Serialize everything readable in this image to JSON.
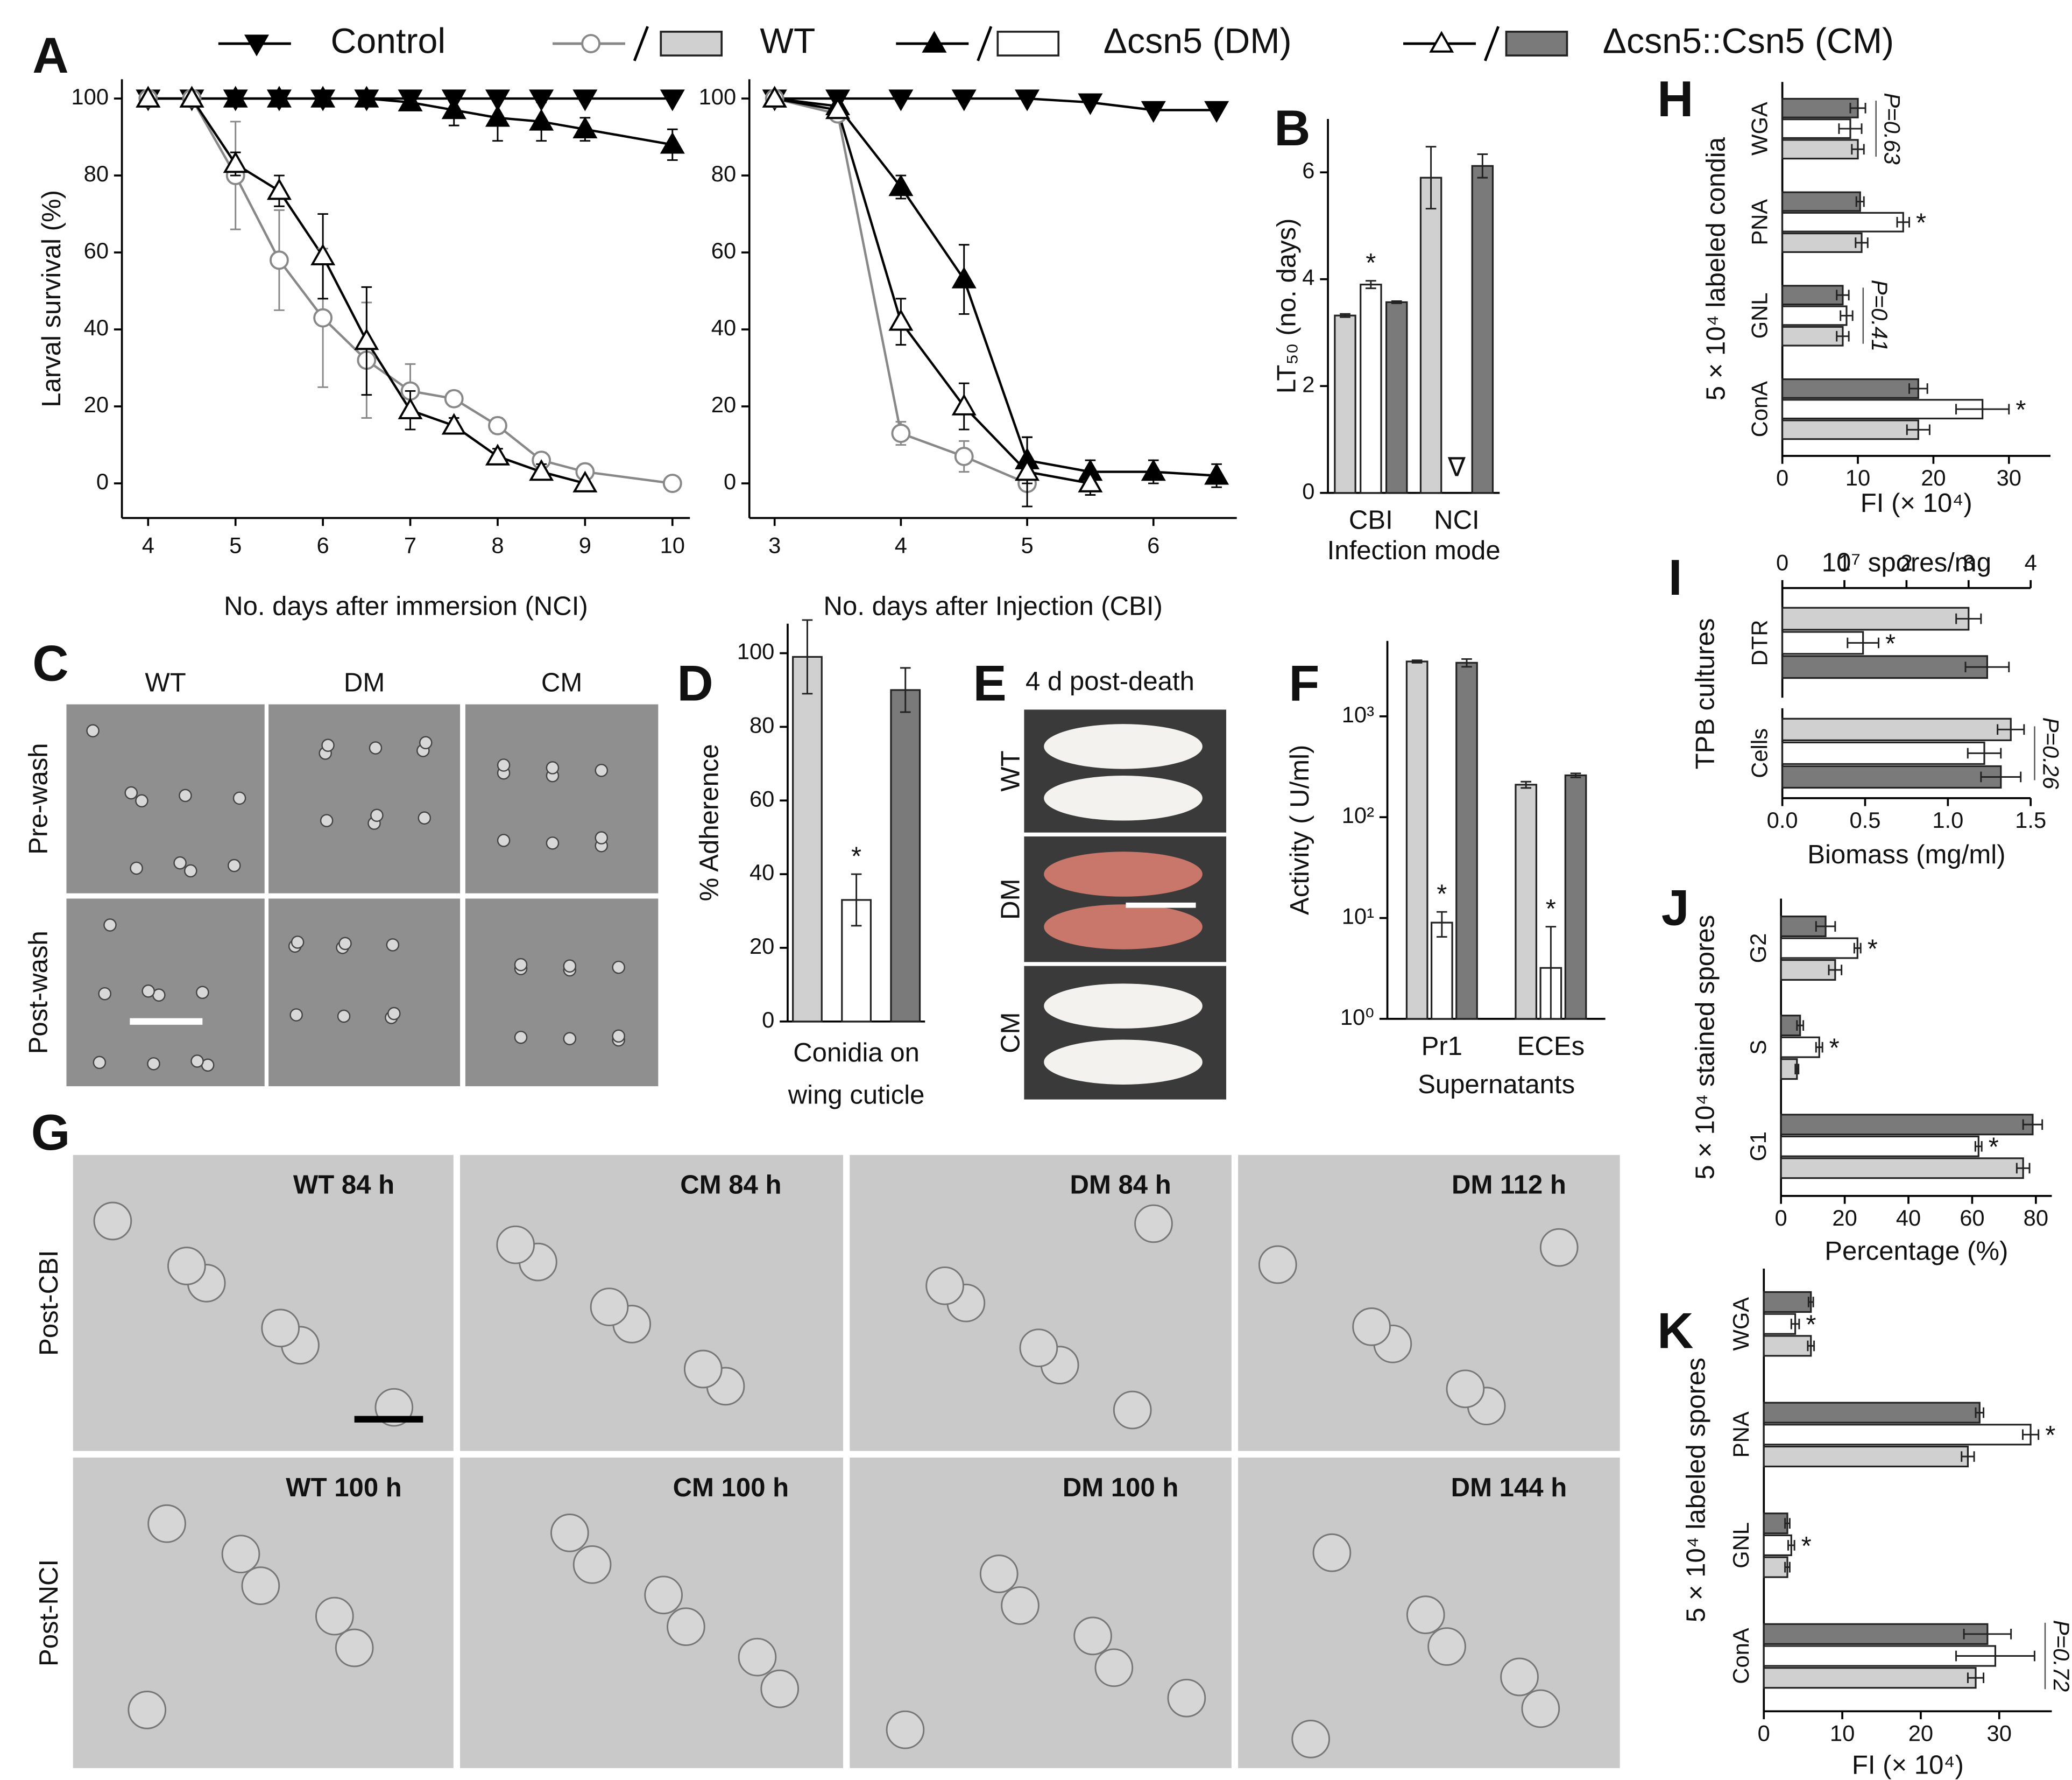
{
  "panel_letters": [
    "A",
    "B",
    "C",
    "D",
    "E",
    "F",
    "G",
    "H",
    "I",
    "J",
    "K"
  ],
  "legend": [
    {
      "label": "Control",
      "color": "#000000",
      "marker": "triangle-down",
      "filled": true
    },
    {
      "label": "WT",
      "color": "#888888",
      "marker": "circle",
      "filled": false,
      "bar_color": "#d0d0d0"
    },
    {
      "label": "Δcsn5 (DM)",
      "color": "#000000",
      "marker": "triangle-up",
      "filled": true,
      "bar_color": "#ffffff"
    },
    {
      "label": "Δcsn5::Csn5 (CM)",
      "color": "#000000",
      "marker": "triangle-up",
      "filled": false,
      "bar_color": "#7a7a7a"
    }
  ],
  "photo_panels": {
    "C": {
      "columns": [
        "WT",
        "DM",
        "CM"
      ],
      "rows": [
        "Pre-wash",
        "Post-wash"
      ]
    },
    "E": {
      "title": "4 d post-death",
      "rows": [
        "WT",
        "DM",
        "CM"
      ]
    },
    "G": {
      "rows": [
        "Post-CBI",
        "Post-NCI"
      ],
      "labels": [
        [
          "WT  84 h",
          "CM  84 h",
          "DM  84 h",
          "DM  112 h"
        ],
        [
          "WT  100 h",
          "CM  100 h",
          "DM  100 h",
          "DM  144 h"
        ]
      ]
    }
  },
  "chart_data": [
    {
      "type": "line",
      "ylabel": "Larval survival (%)",
      "xlabel": "No. days after immersion (NCI)",
      "xlim": [
        3.7,
        10.2
      ],
      "xticks": [
        4,
        5,
        6,
        7,
        8,
        9,
        10
      ],
      "ylim": [
        -9,
        105
      ],
      "yticks": [
        0,
        20,
        40,
        60,
        80,
        100
      ],
      "series": [
        {
          "color": "#000000",
          "marker": "triangle-down",
          "filled": true,
          "x": [
            4,
            4.5,
            5,
            5.5,
            6,
            6.5,
            7,
            7.5,
            8,
            8.5,
            9,
            10
          ],
          "values": [
            100,
            100,
            100,
            100,
            100,
            100,
            100,
            100,
            100,
            100,
            100,
            100
          ]
        },
        {
          "color": "#888888",
          "marker": "circle",
          "filled": false,
          "x": [
            4,
            4.5,
            5,
            5.5,
            6,
            6.5,
            7,
            7.5,
            8,
            8.5,
            9,
            10
          ],
          "values": [
            100,
            100,
            80,
            58,
            43,
            32,
            24,
            22,
            15,
            6,
            3,
            0
          ],
          "errors": [
            0,
            0,
            14,
            13,
            18,
            15,
            7,
            2,
            2,
            2,
            2,
            0
          ]
        },
        {
          "color": "#000000",
          "marker": "triangle-up",
          "filled": true,
          "x": [
            4,
            4.5,
            5,
            5.5,
            6,
            6.5,
            7,
            7.5,
            8,
            8.5,
            9,
            10
          ],
          "values": [
            100,
            100,
            100,
            100,
            100,
            100,
            99,
            97,
            95,
            94,
            92,
            88
          ],
          "errors": [
            0,
            0,
            0,
            0,
            0,
            0,
            1,
            4,
            6,
            5,
            3,
            4
          ]
        },
        {
          "color": "#000000",
          "marker": "triangle-up",
          "filled": false,
          "x": [
            4,
            4.5,
            5,
            5.5,
            6,
            6.5,
            7,
            7.5,
            8,
            8.5,
            9
          ],
          "values": [
            100,
            100,
            83,
            76,
            59,
            37,
            19,
            15,
            7,
            3,
            0
          ],
          "errors": [
            0,
            0,
            3,
            4,
            11,
            14,
            5,
            2,
            2,
            2,
            0
          ]
        }
      ]
    },
    {
      "type": "line",
      "xlabel": "No. days after Injection (CBI)",
      "xlim": [
        2.8,
        6.66
      ],
      "xticks": [
        3,
        4,
        5,
        6
      ],
      "ylim": [
        -9,
        105
      ],
      "yticks": [
        0,
        20,
        40,
        60,
        80,
        100
      ],
      "series": [
        {
          "color": "#000000",
          "marker": "triangle-down",
          "filled": true,
          "x": [
            3,
            3.5,
            4,
            4.5,
            5,
            5.5,
            6,
            6.5
          ],
          "values": [
            100,
            100,
            100,
            100,
            100,
            99,
            97,
            97
          ]
        },
        {
          "color": "#888888",
          "marker": "circle",
          "filled": false,
          "x": [
            3,
            3.5,
            4,
            4.5,
            5
          ],
          "values": [
            100,
            96,
            13,
            7,
            0
          ],
          "errors": [
            0,
            0,
            3,
            4,
            1
          ]
        },
        {
          "color": "#000000",
          "marker": "triangle-up",
          "filled": true,
          "x": [
            3,
            3.5,
            4,
            4.5,
            5,
            5.5,
            6,
            6.5
          ],
          "values": [
            100,
            98,
            77,
            53,
            6,
            3,
            3,
            2
          ],
          "errors": [
            0,
            0,
            3,
            9,
            6,
            3,
            3,
            3
          ]
        },
        {
          "color": "#000000",
          "marker": "triangle-up",
          "filled": false,
          "x": [
            3,
            3.5,
            4,
            4.5,
            5,
            5.5
          ],
          "values": [
            100,
            97,
            42,
            20,
            3,
            0
          ],
          "errors": [
            0,
            0,
            6,
            6,
            9,
            3
          ]
        }
      ]
    },
    {
      "type": "bar",
      "ylabel": "LT₅₀ (no. days)",
      "xlabel": "Infection mode",
      "categories": [
        "CBI",
        "NCI"
      ],
      "ylim": [
        0,
        7
      ],
      "yticks": [
        0,
        2,
        4,
        6
      ],
      "series": [
        {
          "color": "#d0d0d0",
          "values": [
            3.32,
            5.9
          ],
          "errors": [
            0.03,
            0.58
          ]
        },
        {
          "color": "#ffffff",
          "values": [
            3.9,
            null
          ],
          "errors": [
            0.07,
            null
          ],
          "notes": [
            "*",
            "∇"
          ]
        },
        {
          "color": "#7a7a7a",
          "values": [
            3.57,
            6.12
          ],
          "errors": [
            0.02,
            0.22
          ]
        }
      ]
    },
    {
      "type": "bar",
      "ylabel": "% Adherence",
      "xlabel": [
        "Conidia on",
        "wing cuticle"
      ],
      "ylim": [
        0,
        108
      ],
      "yticks": [
        0,
        20,
        40,
        60,
        80,
        100
      ],
      "series": [
        {
          "color": "#d0d0d0",
          "values": [
            99
          ],
          "errors": [
            10
          ]
        },
        {
          "color": "#ffffff",
          "values": [
            33
          ],
          "errors": [
            7
          ],
          "notes": [
            "*"
          ]
        },
        {
          "color": "#7a7a7a",
          "values": [
            90
          ],
          "errors": [
            6
          ]
        }
      ]
    },
    {
      "type": "bar",
      "log_y": true,
      "ylabel": "Activity ( U/ml)",
      "xlabel": "Supernatants",
      "categories": [
        "Pr1",
        "ECEs"
      ],
      "ylim": [
        1,
        5600
      ],
      "yticks": [
        {
          "value": 1,
          "label": "10⁰"
        },
        {
          "value": 10,
          "label": "10¹"
        },
        {
          "value": 100,
          "label": "10²"
        },
        {
          "value": 1000,
          "label": "10³"
        }
      ],
      "series": [
        {
          "color": "#d0d0d0",
          "values": [
            3500,
            210
          ],
          "errors": [
            100,
            15
          ]
        },
        {
          "color": "#ffffff",
          "values": [
            9,
            3.2
          ],
          "errors": [
            2.5,
            5
          ],
          "notes": [
            "*",
            "*"
          ]
        },
        {
          "color": "#7a7a7a",
          "values": [
            3400,
            260
          ],
          "errors": [
            300,
            12
          ]
        }
      ]
    },
    {
      "type": "hbar",
      "ylabel": "5 × 10⁴ labeled condia",
      "xlabel": "FI (× 10⁴)",
      "categories": [
        "WGA",
        "PNA",
        "GNL",
        "ConA"
      ],
      "xlim": [
        0,
        35.5
      ],
      "xticks": [
        0,
        10,
        20,
        30
      ],
      "p_labels": [
        "P=0.63",
        null,
        "P=0.41",
        null
      ],
      "series": [
        {
          "color": "#7a7a7a",
          "values": [
            10,
            10.3,
            8,
            18
          ],
          "errors": [
            1,
            0.5,
            0.8,
            1.2
          ]
        },
        {
          "color": "#ffffff",
          "values": [
            9,
            16,
            8.5,
            26.5
          ],
          "errors": [
            1.5,
            0.8,
            0.8,
            3.5
          ],
          "notes": [
            null,
            "*",
            null,
            "*"
          ]
        },
        {
          "color": "#d0d0d0",
          "values": [
            10,
            10.5,
            8,
            18
          ],
          "errors": [
            0.8,
            0.8,
            0.8,
            1.5
          ]
        }
      ]
    },
    {
      "type": "hbar",
      "xaxis_position": "top",
      "ylabel": "TPB cultures",
      "xlabel": "10⁷ spores/mg",
      "categories": [
        "DTR"
      ],
      "xlim": [
        0,
        4
      ],
      "xticks": [
        0,
        1,
        2,
        3,
        4
      ],
      "series": [
        {
          "color": "#d0d0d0",
          "values": [
            3.0
          ],
          "errors": [
            0.2
          ]
        },
        {
          "color": "#ffffff",
          "values": [
            1.3
          ],
          "errors": [
            0.25
          ],
          "notes": [
            "*"
          ]
        },
        {
          "color": "#7a7a7a",
          "values": [
            3.3
          ],
          "errors": [
            0.35
          ]
        }
      ]
    },
    {
      "type": "hbar",
      "xlabel": "Biomass (mg/ml)",
      "categories": [
        "Cells"
      ],
      "xlim": [
        0,
        1.5
      ],
      "xticks": [
        {
          "value": 0,
          "label": "0.0"
        },
        {
          "value": 0.5,
          "label": "0.5"
        },
        {
          "value": 1,
          "label": "1.0"
        },
        {
          "value": 1.5,
          "label": "1.5"
        }
      ],
      "p_labels": [
        "P=0.26"
      ],
      "series": [
        {
          "color": "#d0d0d0",
          "values": [
            1.38
          ],
          "errors": [
            0.08
          ]
        },
        {
          "color": "#ffffff",
          "values": [
            1.22
          ],
          "errors": [
            0.1
          ]
        },
        {
          "color": "#7a7a7a",
          "values": [
            1.32
          ],
          "errors": [
            0.12
          ]
        }
      ]
    },
    {
      "type": "hbar",
      "ylabel": "5 × 10⁴ stained spores",
      "xlabel": "Percentage (%)",
      "categories": [
        "G2",
        "S",
        "G1"
      ],
      "xlim": [
        0,
        85
      ],
      "xticks": [
        0,
        20,
        40,
        60,
        80
      ],
      "series": [
        {
          "color": "#7a7a7a",
          "values": [
            14,
            6,
            79
          ],
          "errors": [
            3,
            1,
            3
          ]
        },
        {
          "color": "#ffffff",
          "values": [
            24,
            12,
            62
          ],
          "errors": [
            1,
            1,
            1
          ],
          "notes": [
            "*",
            "*",
            "*"
          ]
        },
        {
          "color": "#d0d0d0",
          "values": [
            17,
            5,
            76
          ],
          "errors": [
            2,
            0.5,
            2
          ]
        }
      ]
    },
    {
      "type": "hbar",
      "ylabel": "5 × 10⁴ labeled spores",
      "xlabel": "FI (× 10⁴)",
      "categories": [
        "WGA",
        "PNA",
        "GNL",
        "ConA"
      ],
      "xlim": [
        0,
        36.7
      ],
      "xticks": [
        0,
        10,
        20,
        30
      ],
      "p_labels": [
        null,
        null,
        null,
        "P=0.72"
      ],
      "series": [
        {
          "color": "#7a7a7a",
          "values": [
            6,
            27.5,
            3,
            28.5
          ],
          "errors": [
            0.3,
            0.5,
            0.3,
            3
          ]
        },
        {
          "color": "#ffffff",
          "values": [
            4,
            34,
            3.5,
            29.5
          ],
          "errors": [
            0.5,
            1,
            0.4,
            5
          ],
          "notes": [
            "*",
            "*",
            "*",
            null
          ]
        },
        {
          "color": "#d0d0d0",
          "values": [
            6,
            26,
            3,
            27
          ],
          "errors": [
            0.4,
            0.8,
            0.3,
            1
          ]
        }
      ]
    }
  ]
}
